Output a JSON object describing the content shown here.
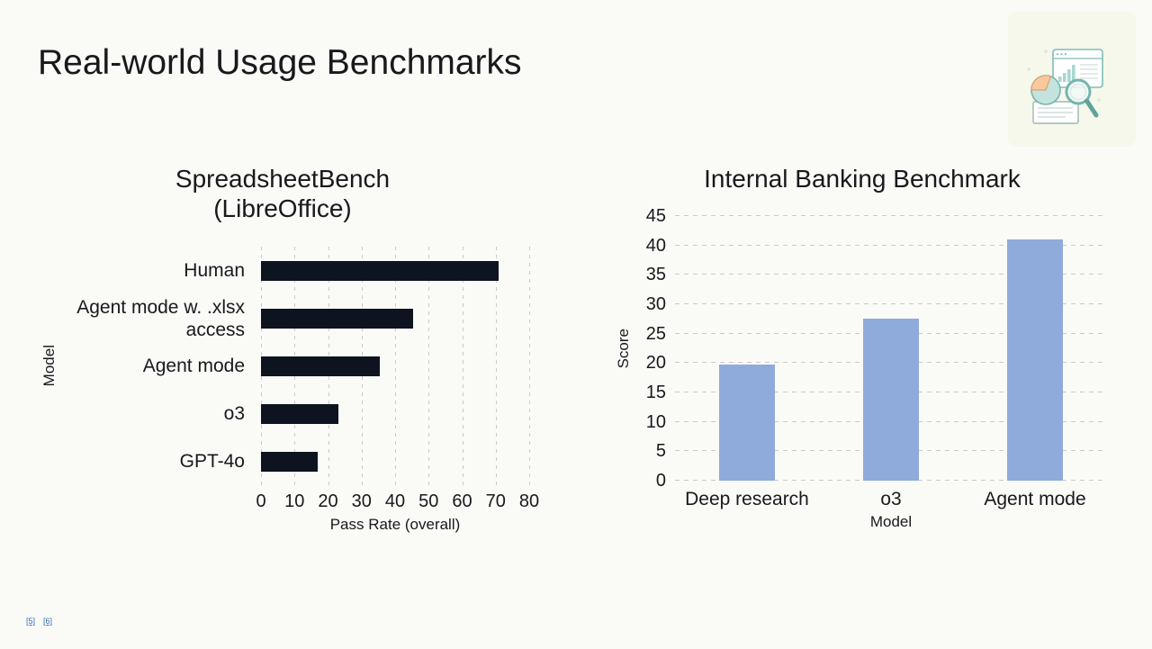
{
  "slide": {
    "title": "Real-world Usage Benchmarks",
    "background_color": "#fafaf7",
    "footnote_links": [
      "[5]",
      "[6]"
    ],
    "footnote_color": "#2e6db4"
  },
  "corner_icon": {
    "name": "chart-magnifier-illustration",
    "background_color": "#f5f8ea",
    "teal": "#76b5ae",
    "light_teal": "#c3e4de",
    "peach": "#f8c99c"
  },
  "chart_data": [
    {
      "type": "bar",
      "orientation": "horizontal",
      "title": "SpreadsheetBench (LibreOffice)",
      "title_display": "SpreadsheetBench\n(LibreOffice)",
      "xlabel": "Pass Rate (overall)",
      "ylabel": "Model",
      "categories": [
        "Human",
        "Agent mode w. .xlsx access",
        "Agent mode",
        "o3",
        "GPT-4o"
      ],
      "values": [
        71,
        45.5,
        35.5,
        23,
        17
      ],
      "xlim": [
        0,
        80
      ],
      "xticks": [
        0,
        10,
        20,
        30,
        40,
        50,
        60,
        70,
        80
      ],
      "bar_color": "#0d1420",
      "grid": "vertical-dashed",
      "gridline_color": "#c9cbc9",
      "legend": false
    },
    {
      "type": "bar",
      "orientation": "vertical",
      "title": "Internal Banking Benchmark",
      "xlabel": "Model",
      "ylabel": "Score",
      "categories": [
        "Deep research",
        "o3",
        "Agent mode"
      ],
      "values": [
        19.7,
        27.5,
        41
      ],
      "ylim": [
        0,
        45
      ],
      "yticks": [
        0,
        5,
        10,
        15,
        20,
        25,
        30,
        35,
        40,
        45
      ],
      "bar_color": "#8fabdc",
      "grid": "horizontal-dashed",
      "gridline_color": "#c9cbc9",
      "legend": false
    }
  ]
}
